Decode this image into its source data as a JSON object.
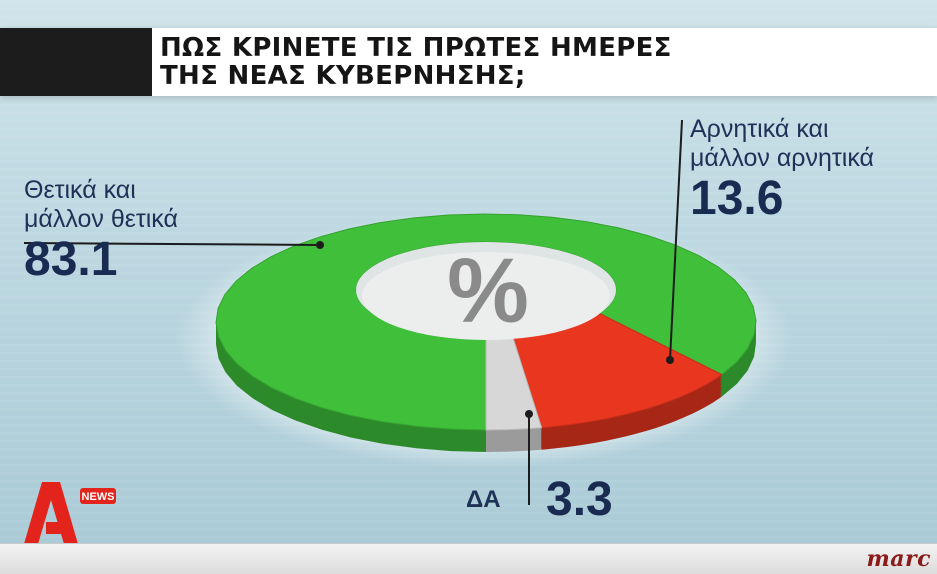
{
  "title": {
    "line1": "ΠΩΣ ΚΡΙΝΕΤΕ ΤΙΣ ΠΡΩΤΕΣ ΗΜΕΡΕΣ",
    "line2": "ΤΗΣ ΝΕΑΣ ΚΥΒΕΡΝΗΣΗΣ;"
  },
  "chart_data": {
    "type": "pie",
    "title": "ΠΩΣ ΚΡΙΝΕΤΕ ΤΙΣ ΠΡΩΤΕΣ ΗΜΕΡΕΣ ΤΗΣ ΝΕΑΣ ΚΥΒΕΡΝΗΣΗΣ;",
    "center_label": "%",
    "slices": [
      {
        "label_line1": "Θετικά και",
        "label_line2": "μάλλον θετικά",
        "value": 83.1,
        "value_text": "83.1",
        "color": "#3fbf3a"
      },
      {
        "label_line1": "Αρνητικά και",
        "label_line2": "μάλλον αρνητικά",
        "value": 13.6,
        "value_text": "13.6",
        "color": "#e8361f"
      },
      {
        "label": "ΔΑ",
        "value": 3.3,
        "value_text": "3.3",
        "color": "#d7d7d7"
      }
    ]
  },
  "logo": {
    "letter": "A",
    "badge": "NEWS",
    "color": "#e2241c"
  },
  "brand": {
    "text": "marc"
  }
}
